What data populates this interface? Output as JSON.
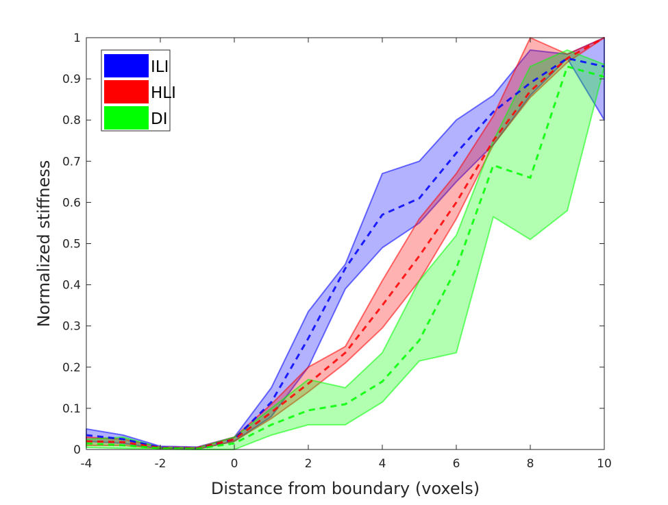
{
  "chart_data": {
    "type": "area",
    "xlabel": "Distance from boundary (voxels)",
    "ylabel": "Normalized stiffness",
    "xlim": [
      -4,
      10
    ],
    "ylim": [
      0,
      1
    ],
    "xticks": [
      "-4",
      "-2",
      "0",
      "2",
      "4",
      "6",
      "8",
      "10"
    ],
    "yticks": [
      "0",
      "0.1",
      "0.2",
      "0.3",
      "0.4",
      "0.5",
      "0.6",
      "0.7",
      "0.8",
      "0.9",
      "1"
    ],
    "grid": false,
    "legend_position": "top-left",
    "x": [
      -4,
      -3,
      -2,
      -1,
      0,
      1,
      2,
      3,
      4,
      5,
      6,
      7,
      8,
      9,
      10
    ],
    "series": [
      {
        "name": "ILI",
        "color": "#0000ff",
        "mean": [
          0.035,
          0.025,
          0.005,
          0.003,
          0.025,
          0.115,
          0.27,
          0.44,
          0.57,
          0.61,
          0.72,
          0.82,
          0.89,
          0.95,
          0.93
        ],
        "upper": [
          0.05,
          0.035,
          0.008,
          0.006,
          0.03,
          0.15,
          0.335,
          0.45,
          0.67,
          0.7,
          0.8,
          0.86,
          0.97,
          0.96,
          1.0
        ],
        "lower": [
          0.02,
          0.015,
          0.002,
          0.001,
          0.02,
          0.08,
          0.2,
          0.39,
          0.49,
          0.55,
          0.65,
          0.74,
          0.86,
          0.95,
          0.8
        ]
      },
      {
        "name": "HLI",
        "color": "#ff0000",
        "mean": [
          0.02,
          0.018,
          0.004,
          0.003,
          0.025,
          0.09,
          0.16,
          0.235,
          0.35,
          0.47,
          0.6,
          0.75,
          0.87,
          0.95,
          1.0
        ],
        "upper": [
          0.03,
          0.025,
          0.006,
          0.005,
          0.03,
          0.11,
          0.2,
          0.25,
          0.41,
          0.56,
          0.67,
          0.81,
          1.0,
          0.96,
          1.0
        ],
        "lower": [
          0.01,
          0.01,
          0.002,
          0.001,
          0.02,
          0.075,
          0.14,
          0.21,
          0.295,
          0.41,
          0.56,
          0.74,
          0.855,
          0.94,
          1.0
        ]
      },
      {
        "name": "DI",
        "color": "#00ff00",
        "mean": [
          0.015,
          0.01,
          0.003,
          0.002,
          0.015,
          0.06,
          0.095,
          0.11,
          0.165,
          0.265,
          0.44,
          0.69,
          0.66,
          0.93,
          0.905
        ],
        "upper": [
          0.025,
          0.03,
          0.005,
          0.004,
          0.03,
          0.1,
          0.17,
          0.15,
          0.235,
          0.41,
          0.52,
          0.75,
          0.93,
          0.97,
          0.935
        ],
        "lower": [
          0.005,
          0.003,
          0.001,
          0.0,
          0.0,
          0.035,
          0.06,
          0.06,
          0.115,
          0.215,
          0.235,
          0.565,
          0.51,
          0.58,
          0.93
        ]
      }
    ]
  }
}
